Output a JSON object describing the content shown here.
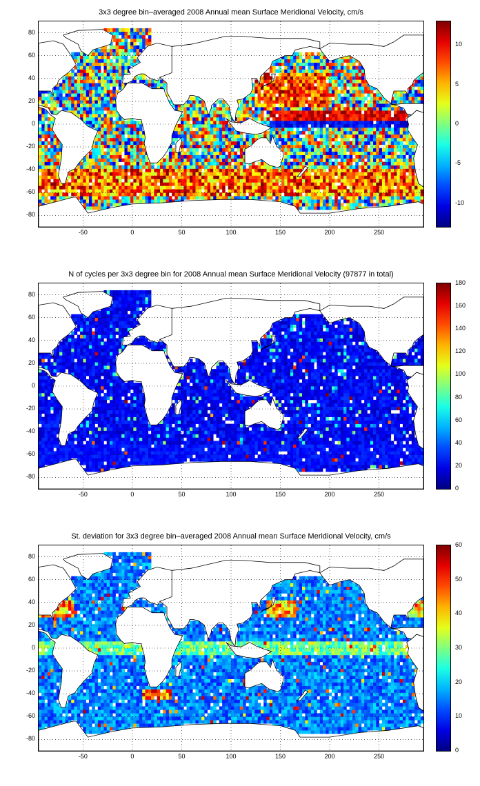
{
  "chart_data": [
    {
      "type": "heatmap",
      "title": "3x3 degree bin–averaged 2008 Annual mean Surface Meridional Velocity, cm/s",
      "xlabel": "",
      "ylabel": "",
      "xlim": [
        -95,
        295
      ],
      "ylim": [
        -90,
        90
      ],
      "x_ticks": [
        -50,
        0,
        50,
        100,
        150,
        200,
        250
      ],
      "y_ticks": [
        80,
        60,
        40,
        20,
        0,
        -20,
        -40,
        -60,
        -80
      ],
      "grid": true,
      "bin_size_deg": 3,
      "colorbar": {
        "min": -13,
        "max": 13,
        "ticks": [
          10,
          5,
          0,
          -5,
          -10
        ],
        "colormap": "jet"
      }
    },
    {
      "type": "heatmap",
      "title": "N of cycles per 3x3 degree bin for 2008 Annual mean Surface Meridional Velocity (97877 in total)",
      "xlabel": "",
      "ylabel": "",
      "xlim": [
        -95,
        295
      ],
      "ylim": [
        -90,
        90
      ],
      "x_ticks": [
        -50,
        0,
        50,
        100,
        150,
        200,
        250
      ],
      "y_ticks": [
        80,
        60,
        40,
        20,
        0,
        -20,
        -40,
        -60,
        -80
      ],
      "grid": true,
      "bin_size_deg": 3,
      "colorbar": {
        "min": 0,
        "max": 180,
        "ticks": [
          180,
          160,
          140,
          120,
          100,
          80,
          60,
          40,
          20,
          0
        ],
        "colormap": "jet"
      }
    },
    {
      "type": "heatmap",
      "title": "St. deviation for 3x3 degree bin–averaged 2008 Annual mean Surface Meridional Velocity, cm/s",
      "xlabel": "",
      "ylabel": "",
      "xlim": [
        -95,
        295
      ],
      "ylim": [
        -90,
        90
      ],
      "x_ticks": [
        -50,
        0,
        50,
        100,
        150,
        200,
        250
      ],
      "y_ticks": [
        80,
        60,
        40,
        20,
        0,
        -20,
        -40,
        -60,
        -80
      ],
      "grid": true,
      "bin_size_deg": 3,
      "colorbar": {
        "min": 0,
        "max": 60,
        "ticks": [
          60,
          50,
          40,
          30,
          20,
          10,
          0
        ],
        "colormap": "jet"
      }
    }
  ]
}
